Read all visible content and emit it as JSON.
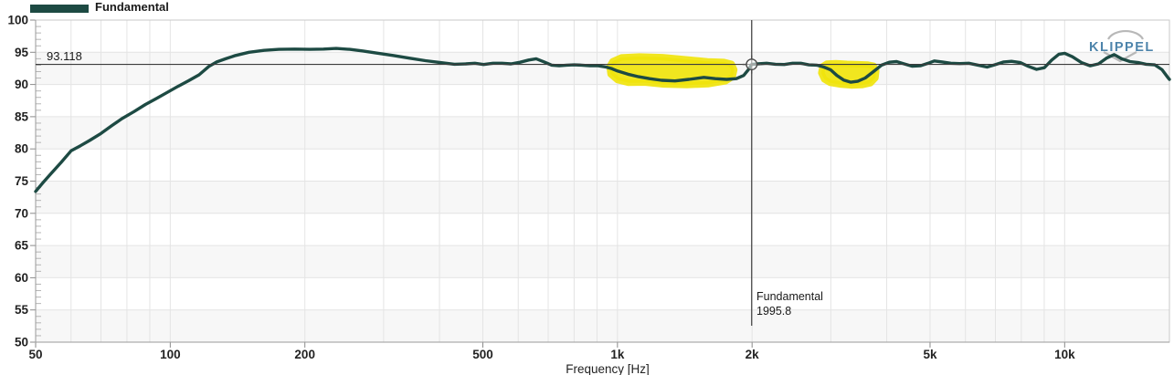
{
  "logo": {
    "text": "KLIPPEL"
  },
  "colors": {
    "curve": "#1d4a43",
    "highlight": "#f0e40c",
    "grid": "#e4e4e4",
    "band": "#f7f7f7",
    "axis_line": "#9a9a9a",
    "border": "#c8c8c8",
    "cursor": "#3c3c3c",
    "tick_label": "#222222",
    "logo_blue": "#4d84ab",
    "logo_gray": "#b8b8b8"
  },
  "chart_data": {
    "type": "line",
    "title": "",
    "xlabel": "Frequency [Hz]",
    "ylabel": "",
    "x_scale": "log",
    "grid": true,
    "legend_position": "top-left",
    "xlim": [
      50,
      17150
    ],
    "ylim": [
      50,
      100
    ],
    "x_ticks": [
      {
        "f": 50,
        "label": "50"
      },
      {
        "f": 100,
        "label": "100"
      },
      {
        "f": 200,
        "label": "200"
      },
      {
        "f": 500,
        "label": "500"
      },
      {
        "f": 1000,
        "label": "1k"
      },
      {
        "f": 2000,
        "label": "2k"
      },
      {
        "f": 5000,
        "label": "5k"
      },
      {
        "f": 10000,
        "label": "10k"
      }
    ],
    "y_ticks": [
      {
        "v": 100,
        "label": "100"
      },
      {
        "v": 95,
        "label": "95"
      },
      {
        "v": 90,
        "label": "90"
      },
      {
        "v": 85,
        "label": "85"
      },
      {
        "v": 80,
        "label": "80"
      },
      {
        "v": 75,
        "label": "75"
      },
      {
        "v": 70,
        "label": "70"
      },
      {
        "v": 65,
        "label": "65"
      },
      {
        "v": 60,
        "label": "60"
      },
      {
        "v": 55,
        "label": "55"
      },
      {
        "v": 50,
        "label": "50"
      }
    ],
    "x_minor_gridlines": [
      60,
      70,
      80,
      90,
      100,
      200,
      300,
      400,
      500,
      600,
      700,
      800,
      900,
      1000,
      2000,
      3000,
      4000,
      5000,
      6000,
      7000,
      8000,
      9000,
      10000
    ],
    "cursor": {
      "series": "Fundamental",
      "frequency": 1995.8,
      "frequency_label": "1995.8",
      "level": 93.118,
      "level_label": "93.118"
    },
    "series": [
      {
        "name": "Fundamental",
        "color": "#1d4a43",
        "points": [
          [
            50,
            73.4
          ],
          [
            52,
            74.8
          ],
          [
            54,
            76.1
          ],
          [
            57,
            77.9
          ],
          [
            60,
            79.7
          ],
          [
            63,
            80.5
          ],
          [
            66,
            81.3
          ],
          [
            70,
            82.4
          ],
          [
            74,
            83.6
          ],
          [
            78,
            84.7
          ],
          [
            83,
            85.8
          ],
          [
            88,
            86.9
          ],
          [
            93,
            87.8
          ],
          [
            98,
            88.7
          ],
          [
            104,
            89.7
          ],
          [
            110,
            90.6
          ],
          [
            116,
            91.5
          ],
          [
            122,
            92.8
          ],
          [
            127,
            93.5
          ],
          [
            133,
            94.0
          ],
          [
            140,
            94.5
          ],
          [
            150,
            95.0
          ],
          [
            162,
            95.3
          ],
          [
            175,
            95.45
          ],
          [
            190,
            95.5
          ],
          [
            205,
            95.45
          ],
          [
            220,
            95.5
          ],
          [
            235,
            95.6
          ],
          [
            252,
            95.45
          ],
          [
            270,
            95.2
          ],
          [
            292,
            94.85
          ],
          [
            315,
            94.5
          ],
          [
            342,
            94.1
          ],
          [
            372,
            93.7
          ],
          [
            402,
            93.4
          ],
          [
            432,
            93.15
          ],
          [
            458,
            93.2
          ],
          [
            480,
            93.3
          ],
          [
            502,
            93.1
          ],
          [
            527,
            93.3
          ],
          [
            552,
            93.3
          ],
          [
            578,
            93.2
          ],
          [
            606,
            93.45
          ],
          [
            633,
            93.8
          ],
          [
            658,
            94.0
          ],
          [
            686,
            93.5
          ],
          [
            713,
            93.0
          ],
          [
            741,
            92.9
          ],
          [
            770,
            93.0
          ],
          [
            800,
            93.05
          ],
          [
            832,
            93.0
          ],
          [
            868,
            92.9
          ],
          [
            905,
            92.9
          ],
          [
            943,
            92.7
          ],
          [
            972,
            92.45
          ],
          [
            1000,
            92.1
          ],
          [
            1055,
            91.6
          ],
          [
            1115,
            91.2
          ],
          [
            1180,
            90.9
          ],
          [
            1255,
            90.65
          ],
          [
            1345,
            90.55
          ],
          [
            1445,
            90.8
          ],
          [
            1560,
            91.1
          ],
          [
            1655,
            90.9
          ],
          [
            1755,
            90.8
          ],
          [
            1845,
            90.9
          ],
          [
            1915,
            91.4
          ],
          [
            1962,
            92.3
          ],
          [
            1995.8,
            93.12
          ],
          [
            2060,
            93.2
          ],
          [
            2155,
            93.3
          ],
          [
            2255,
            93.15
          ],
          [
            2360,
            93.1
          ],
          [
            2465,
            93.3
          ],
          [
            2570,
            93.3
          ],
          [
            2680,
            93.05
          ],
          [
            2790,
            93.0
          ],
          [
            2895,
            92.7
          ],
          [
            2995,
            92.3
          ],
          [
            3095,
            91.4
          ],
          [
            3205,
            90.7
          ],
          [
            3325,
            90.35
          ],
          [
            3445,
            90.5
          ],
          [
            3580,
            91.0
          ],
          [
            3735,
            92.0
          ],
          [
            3895,
            93.0
          ],
          [
            4055,
            93.45
          ],
          [
            4210,
            93.55
          ],
          [
            4375,
            93.2
          ],
          [
            4555,
            92.85
          ],
          [
            4755,
            92.9
          ],
          [
            4955,
            93.3
          ],
          [
            5110,
            93.65
          ],
          [
            5325,
            93.5
          ],
          [
            5565,
            93.3
          ],
          [
            5825,
            93.25
          ],
          [
            6105,
            93.3
          ],
          [
            6405,
            93.0
          ],
          [
            6705,
            92.7
          ],
          [
            7005,
            93.1
          ],
          [
            7305,
            93.5
          ],
          [
            7605,
            93.6
          ],
          [
            7955,
            93.4
          ],
          [
            8305,
            92.8
          ],
          [
            8655,
            92.35
          ],
          [
            9005,
            92.6
          ],
          [
            9355,
            93.8
          ],
          [
            9705,
            94.7
          ],
          [
            10005,
            94.85
          ],
          [
            10405,
            94.3
          ],
          [
            10905,
            93.4
          ],
          [
            11405,
            92.9
          ],
          [
            11905,
            93.2
          ],
          [
            12405,
            94.1
          ],
          [
            12905,
            94.65
          ],
          [
            13405,
            94.0
          ],
          [
            14005,
            93.55
          ],
          [
            14605,
            93.4
          ],
          [
            15205,
            93.15
          ],
          [
            15905,
            93.05
          ],
          [
            16505,
            92.3
          ],
          [
            17005,
            91.1
          ],
          [
            17150,
            90.8
          ]
        ]
      }
    ],
    "highlight_regions": [
      {
        "f_range": [
          960,
          1825
        ],
        "db_range": [
          89.9,
          94.35
        ],
        "outline": [
          [
            975,
            93.6
          ],
          [
            1020,
            94.2
          ],
          [
            1120,
            94.35
          ],
          [
            1260,
            94.25
          ],
          [
            1430,
            93.9
          ],
          [
            1590,
            93.6
          ],
          [
            1730,
            93.5
          ],
          [
            1800,
            93.2
          ],
          [
            1825,
            92.3
          ],
          [
            1810,
            91.2
          ],
          [
            1745,
            90.5
          ],
          [
            1600,
            90.05
          ],
          [
            1430,
            89.9
          ],
          [
            1270,
            90.0
          ],
          [
            1150,
            90.3
          ],
          [
            1060,
            90.25
          ],
          [
            1000,
            90.7
          ],
          [
            965,
            91.6
          ],
          [
            960,
            92.8
          ]
        ]
      },
      {
        "f_range": [
          2855,
          3790
        ],
        "db_range": [
          89.85,
          93.3
        ],
        "outline": [
          [
            2875,
            92.8
          ],
          [
            2940,
            93.25
          ],
          [
            3080,
            93.3
          ],
          [
            3260,
            93.2
          ],
          [
            3450,
            93.15
          ],
          [
            3620,
            93.1
          ],
          [
            3740,
            92.9
          ],
          [
            3790,
            92.1
          ],
          [
            3775,
            91.0
          ],
          [
            3680,
            90.2
          ],
          [
            3520,
            89.9
          ],
          [
            3330,
            89.85
          ],
          [
            3140,
            90.0
          ],
          [
            2990,
            90.25
          ],
          [
            2900,
            90.8
          ],
          [
            2855,
            91.8
          ]
        ]
      }
    ]
  }
}
